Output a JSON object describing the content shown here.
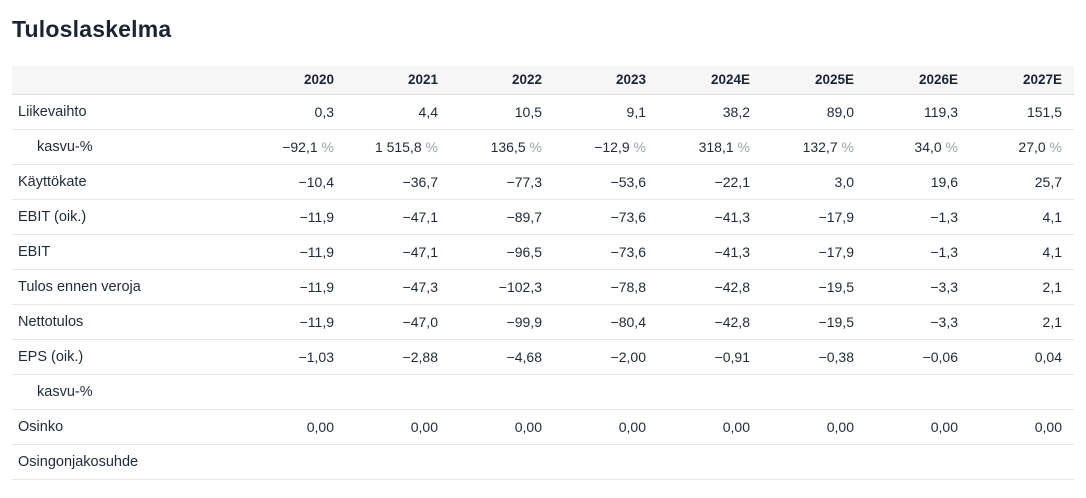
{
  "page": {
    "title": "Tuloslaskelma"
  },
  "colors": {
    "title_text": "#1a2433",
    "body_text": "#1e2a3a",
    "percent_sign_muted": "#9aa5b1",
    "header_background": "#f6f6f7",
    "row_border": "#e6e6e8"
  },
  "chart_data": {
    "type": "table",
    "title": "Tuloslaskelma",
    "columns": [
      "2020",
      "2021",
      "2022",
      "2023",
      "2024E",
      "2025E",
      "2026E",
      "2027E"
    ],
    "rows": [
      {
        "label": "Liikevaihto",
        "indent": false,
        "values": [
          "0,3",
          "4,4",
          "10,5",
          "9,1",
          "38,2",
          "89,0",
          "119,3",
          "151,5"
        ]
      },
      {
        "label": "kasvu-%",
        "indent": true,
        "values": [
          "−92,1 %",
          "1 515,8 %",
          "136,5 %",
          "−12,9 %",
          "318,1 %",
          "132,7 %",
          "34,0 %",
          "27,0 %"
        ]
      },
      {
        "label": "Käyttökate",
        "indent": false,
        "values": [
          "−10,4",
          "−36,7",
          "−77,3",
          "−53,6",
          "−22,1",
          "3,0",
          "19,6",
          "25,7"
        ]
      },
      {
        "label": "EBIT (oik.)",
        "indent": false,
        "values": [
          "−11,9",
          "−47,1",
          "−89,7",
          "−73,6",
          "−41,3",
          "−17,9",
          "−1,3",
          "4,1"
        ]
      },
      {
        "label": "EBIT",
        "indent": false,
        "values": [
          "−11,9",
          "−47,1",
          "−96,5",
          "−73,6",
          "−41,3",
          "−17,9",
          "−1,3",
          "4,1"
        ]
      },
      {
        "label": "Tulos ennen veroja",
        "indent": false,
        "values": [
          "−11,9",
          "−47,3",
          "−102,3",
          "−78,8",
          "−42,8",
          "−19,5",
          "−3,3",
          "2,1"
        ]
      },
      {
        "label": "Nettotulos",
        "indent": false,
        "values": [
          "−11,9",
          "−47,0",
          "−99,9",
          "−80,4",
          "−42,8",
          "−19,5",
          "−3,3",
          "2,1"
        ]
      },
      {
        "label": "EPS (oik.)",
        "indent": false,
        "values": [
          "−1,03",
          "−2,88",
          "−4,68",
          "−2,00",
          "−0,91",
          "−0,38",
          "−0,06",
          "0,04"
        ]
      },
      {
        "label": "kasvu-%",
        "indent": true,
        "values": [
          "",
          "",
          "",
          "",
          "",
          "",
          "",
          ""
        ]
      },
      {
        "label": "Osinko",
        "indent": false,
        "values": [
          "0,00",
          "0,00",
          "0,00",
          "0,00",
          "0,00",
          "0,00",
          "0,00",
          "0,00"
        ]
      },
      {
        "label": "Osingonjakosuhde",
        "indent": false,
        "values": [
          "",
          "",
          "",
          "",
          "",
          "",
          "",
          ""
        ]
      }
    ]
  }
}
